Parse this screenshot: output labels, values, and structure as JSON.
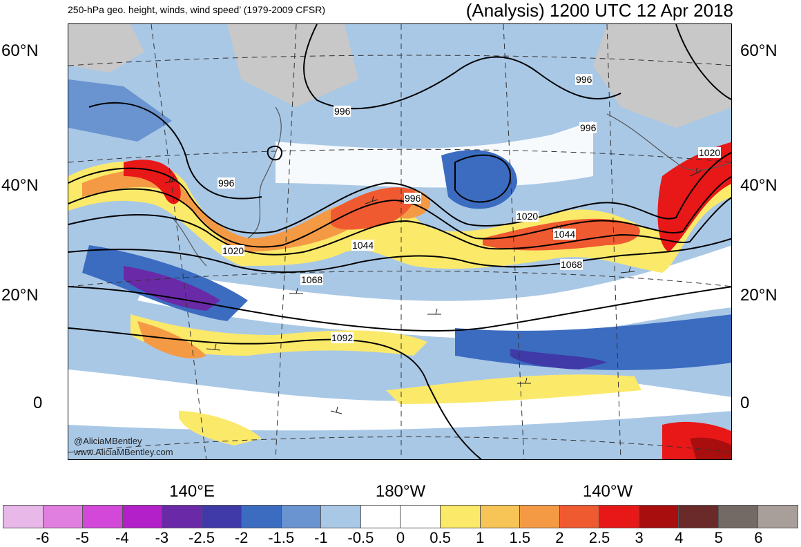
{
  "header": {
    "title_left": "250-hPa geo. height, winds, wind speed’ (1979-2009 CFSR)",
    "title_right": "(Analysis) 1200 UTC 12 Apr 2018"
  },
  "lat_labels": [
    "60°N",
    "40°N",
    "20°N",
    "0"
  ],
  "lon_labels": [
    "140°E",
    "180°W",
    "140°W"
  ],
  "contour_labels": [
    "996",
    "996",
    "996",
    "996",
    "996",
    "1020",
    "1020",
    "1020",
    "1044",
    "1044",
    "1068",
    "1068",
    "1092"
  ],
  "credit": {
    "handle": "@AliciaMBentley",
    "site": "www.AliciaMBentley.com"
  },
  "colorbar": {
    "ticks": [
      "-6",
      "-5",
      "-4",
      "-3",
      "-2.5",
      "-2",
      "-1.5",
      "-1",
      "-0.5",
      "0",
      "0.5",
      "1",
      "1.5",
      "2",
      "2.5",
      "3",
      "4",
      "5",
      "6"
    ],
    "colors": [
      "#e8b8e8",
      "#e07fe0",
      "#d348d8",
      "#b31fc8",
      "#6a2aa8",
      "#3f3aa8",
      "#3b6cc0",
      "#6a94d0",
      "#a9c8e6",
      "#ffffff",
      "#ffffff",
      "#fbe96a",
      "#f6c555",
      "#f49a45",
      "#f05a30",
      "#e81818",
      "#a80e0e",
      "#6b2a2a",
      "#736a66",
      "#a89e9a"
    ]
  }
}
